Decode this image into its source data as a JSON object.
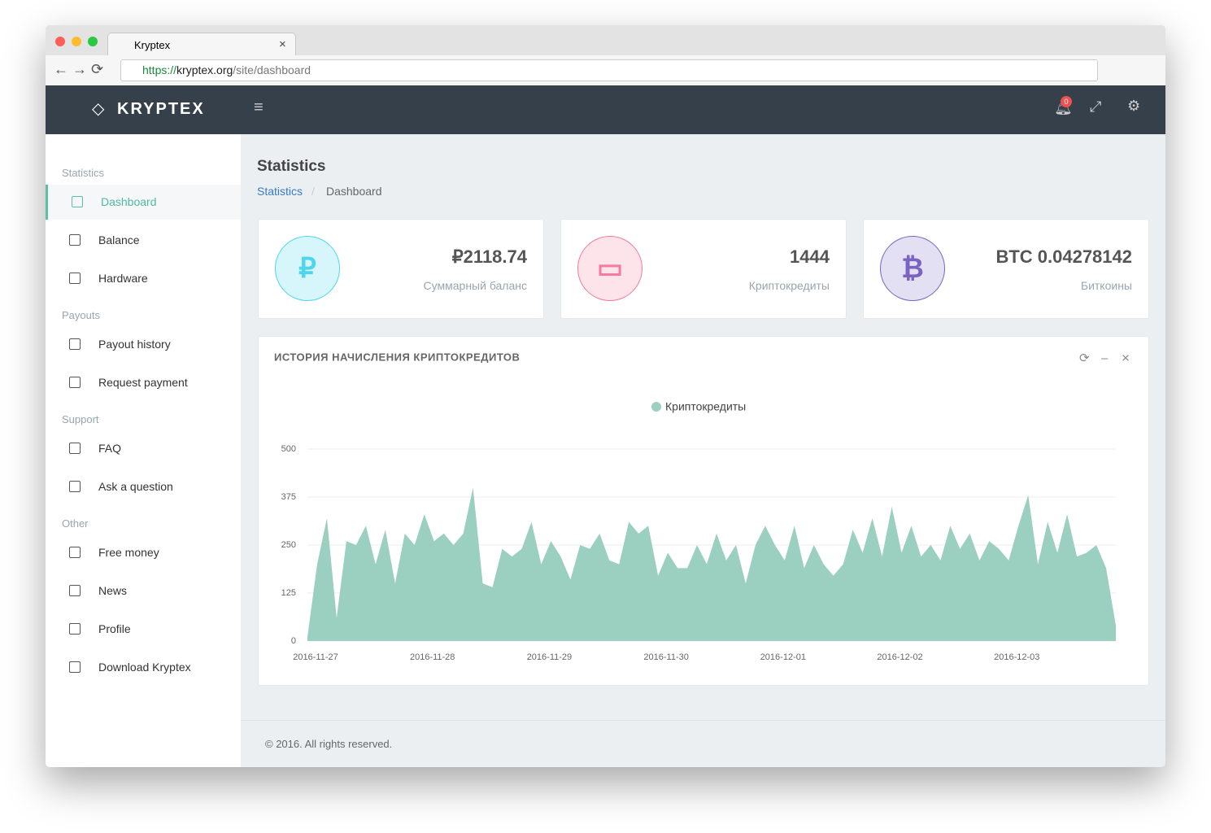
{
  "browser": {
    "tab_title": "Kryptex",
    "url_scheme": "https://",
    "url_host": "kryptex.org",
    "url_path": "/site/dashboard"
  },
  "header": {
    "brand": "KRYPTEX",
    "notifications": 0
  },
  "sidebar": [
    {
      "title": "Statistics",
      "items": [
        "Dashboard",
        "Balance",
        "Hardware"
      ]
    },
    {
      "title": "Payouts",
      "items": [
        "Payout history",
        "Request payment"
      ]
    },
    {
      "title": "Support",
      "items": [
        "FAQ",
        "Ask a question"
      ]
    },
    {
      "title": "Other",
      "items": [
        "Free money",
        "News",
        "Profile",
        "Download Kryptex"
      ]
    }
  ],
  "page": {
    "title": "Statistics",
    "breadcrumb": [
      "Statistics",
      "Dashboard"
    ]
  },
  "cards": [
    {
      "value": "₽2118.74",
      "label": "Суммарный баланс"
    },
    {
      "value": 1444,
      "label": "Криптокредиты"
    },
    {
      "value": "BTC 0.04278142",
      "label": "Биткоины"
    }
  ],
  "chart_data": {
    "type": "area",
    "title": "ИСТОРИЯ НАЧИСЛЕНИЯ КРИПТОКРЕДИТОВ",
    "categories": [
      "2016-11-27",
      null,
      null,
      null,
      null,
      null,
      null,
      null,
      null,
      null,
      null,
      null,
      "2016-11-28",
      null,
      null,
      null,
      null,
      null,
      null,
      null,
      null,
      null,
      null,
      null,
      "2016-11-29",
      null,
      null,
      null,
      null,
      null,
      null,
      null,
      null,
      null,
      null,
      null,
      "2016-11-30",
      null,
      null,
      null,
      null,
      null,
      null,
      null,
      null,
      null,
      null,
      null,
      "2016-12-01",
      null,
      null,
      null,
      null,
      null,
      null,
      null,
      null,
      null,
      null,
      null,
      "2016-12-02",
      null,
      null,
      null,
      null,
      null,
      null,
      null,
      null,
      null,
      null,
      null,
      "2016-12-03",
      null,
      null,
      null,
      null,
      null,
      null,
      null,
      null,
      null,
      null,
      null
    ],
    "series": [
      {
        "name": "Криптокредиты",
        "color": "#9bcfc0",
        "values": [
          10,
          200,
          320,
          60,
          260,
          250,
          300,
          200,
          290,
          150,
          280,
          250,
          330,
          260,
          280,
          250,
          280,
          400,
          150,
          140,
          240,
          220,
          240,
          310,
          200,
          260,
          220,
          160,
          250,
          240,
          280,
          210,
          200,
          310,
          280,
          300,
          170,
          230,
          190,
          190,
          250,
          200,
          280,
          210,
          250,
          150,
          250,
          300,
          250,
          210,
          300,
          190,
          250,
          200,
          170,
          200,
          290,
          230,
          320,
          220,
          350,
          230,
          300,
          220,
          250,
          210,
          300,
          240,
          280,
          210,
          260,
          240,
          210,
          300,
          380,
          200,
          310,
          230,
          330,
          220,
          230,
          250,
          190,
          40
        ]
      }
    ],
    "ylim": [
      0,
      500
    ],
    "yticks": [
      0,
      125,
      250,
      375,
      500
    ],
    "grid": true,
    "legend": "top"
  },
  "footer": "© 2016. All rights reserved."
}
